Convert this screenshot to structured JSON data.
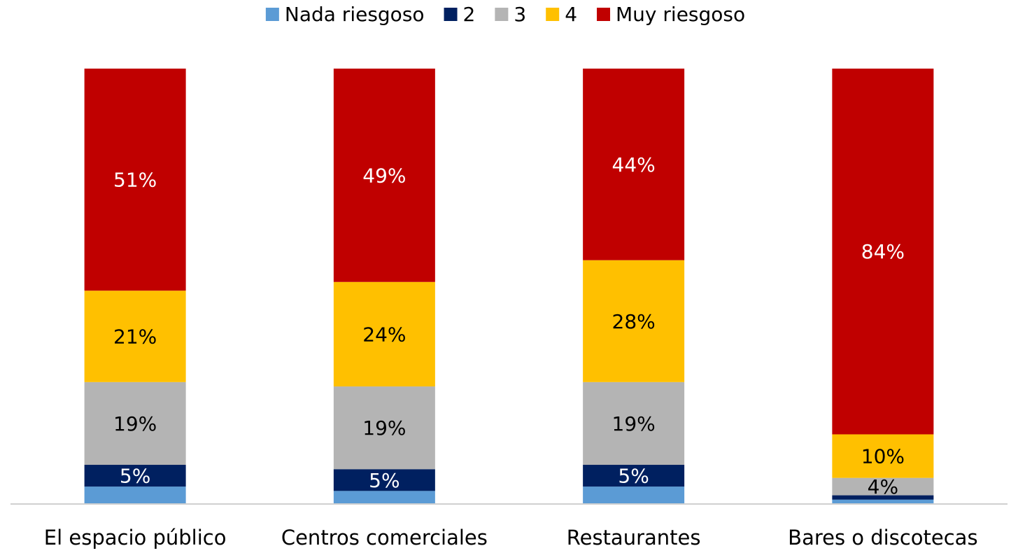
{
  "chart_data": {
    "type": "stacked_bar_100",
    "categories": [
      "El espacio público",
      "Centros comerciales",
      "Restaurantes",
      "Bares o discotecas"
    ],
    "series": [
      {
        "name": "Nada riesgoso",
        "color": "#5b9bd5",
        "values": [
          4,
          3,
          4,
          1
        ],
        "value_labels": [
          null,
          null,
          null,
          null
        ]
      },
      {
        "name": "2",
        "color": "#002060",
        "values": [
          5,
          5,
          5,
          1
        ],
        "value_labels": [
          "5%",
          "5%",
          "5%",
          null
        ]
      },
      {
        "name": "3",
        "color": "#b4b4b4",
        "values": [
          19,
          19,
          19,
          4
        ],
        "value_labels": [
          "19%",
          "19%",
          "19%",
          "4%"
        ]
      },
      {
        "name": "4",
        "color": "#ffc000",
        "values": [
          21,
          24,
          28,
          10
        ],
        "value_labels": [
          "21%",
          "24%",
          "28%",
          "10%"
        ]
      },
      {
        "name": "Muy riesgoso",
        "color": "#c00000",
        "values": [
          51,
          49,
          44,
          84
        ],
        "value_labels": [
          "51%",
          "49%",
          "44%",
          "84%"
        ]
      }
    ],
    "ylim": [
      0,
      100
    ],
    "legend": "top"
  }
}
